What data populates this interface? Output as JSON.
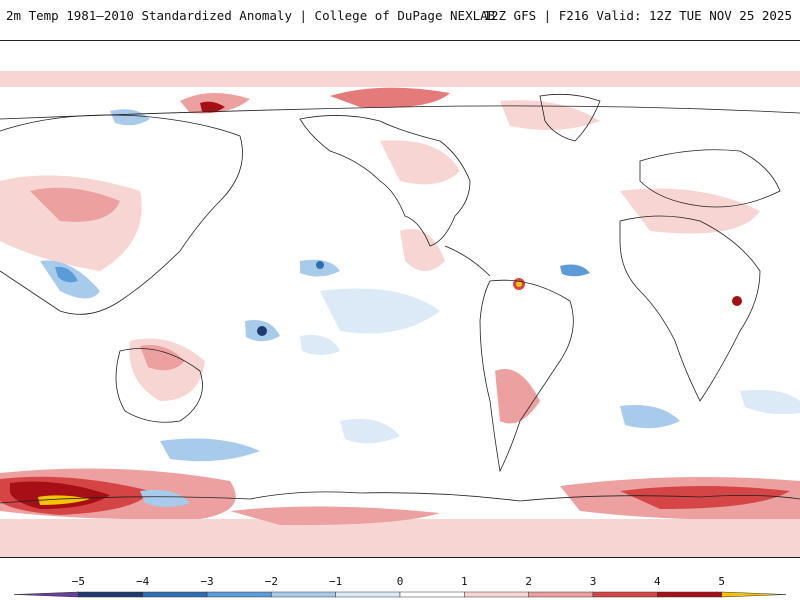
{
  "header": {
    "title": "2m Temp 1981–2010 Standardized Anomaly | College of DuPage NEXLAB",
    "run_info": "12Z GFS | F216 Valid: 12Z TUE NOV 25 2025"
  },
  "legend": {
    "ticks": [
      {
        "value": -5,
        "label": "−5"
      },
      {
        "value": -4,
        "label": "−4"
      },
      {
        "value": -3,
        "label": "−3"
      },
      {
        "value": -2,
        "label": "−2"
      },
      {
        "value": -1,
        "label": "−1"
      },
      {
        "value": 0,
        "label": "0"
      },
      {
        "value": 1,
        "label": "1"
      },
      {
        "value": 2,
        "label": "2"
      },
      {
        "value": 3,
        "label": "3"
      },
      {
        "value": 4,
        "label": "4"
      },
      {
        "value": 5,
        "label": "5"
      }
    ],
    "range": [
      -6,
      6
    ],
    "bins": [
      {
        "from": -6,
        "to": -5,
        "color": "#6a3d9a"
      },
      {
        "from": -5,
        "to": -4,
        "color": "#1f3a6e"
      },
      {
        "from": -4,
        "to": -3,
        "color": "#2f6db3"
      },
      {
        "from": -3,
        "to": -2,
        "color": "#5a9bd8"
      },
      {
        "from": -2,
        "to": -1,
        "color": "#a9cbeb"
      },
      {
        "from": -1,
        "to": 0,
        "color": "#dce9f6"
      },
      {
        "from": 0,
        "to": 1,
        "color": "#ffffff"
      },
      {
        "from": 1,
        "to": 2,
        "color": "#f7d5d3"
      },
      {
        "from": 2,
        "to": 3,
        "color": "#eca0a0"
      },
      {
        "from": 3,
        "to": 4,
        "color": "#d64545"
      },
      {
        "from": 4,
        "to": 5,
        "color": "#a50f15"
      },
      {
        "from": 5,
        "to": 6,
        "color": "#f5c400"
      }
    ]
  },
  "colors": {
    "coastline": "#222222",
    "frame": "#222222"
  }
}
